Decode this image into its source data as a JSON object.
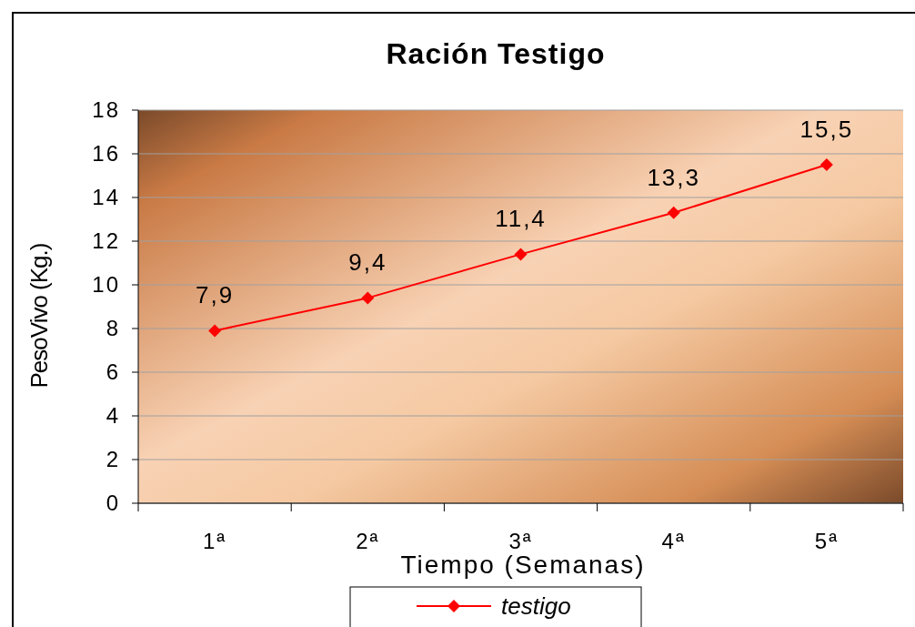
{
  "chart_data": {
    "type": "line",
    "title": "Ración Testigo",
    "xlabel": "Tiempo (Semanas)",
    "ylabel": "PesoVivo (Kg.)",
    "categories": [
      "1ª",
      "2ª",
      "3ª",
      "4ª",
      "5ª"
    ],
    "series": [
      {
        "name": "testigo",
        "color": "#ff0000",
        "values": [
          7.9,
          9.4,
          11.4,
          13.3,
          15.5
        ],
        "value_labels": [
          "7,9",
          "9,4",
          "11,4",
          "13,3",
          "15,5"
        ]
      }
    ],
    "ylim": [
      0,
      18
    ],
    "yticks": [
      0,
      2,
      4,
      6,
      8,
      10,
      12,
      14,
      16,
      18
    ],
    "grid": "y",
    "legend": "bottom",
    "marker": "diamond",
    "line_style": "solid"
  }
}
